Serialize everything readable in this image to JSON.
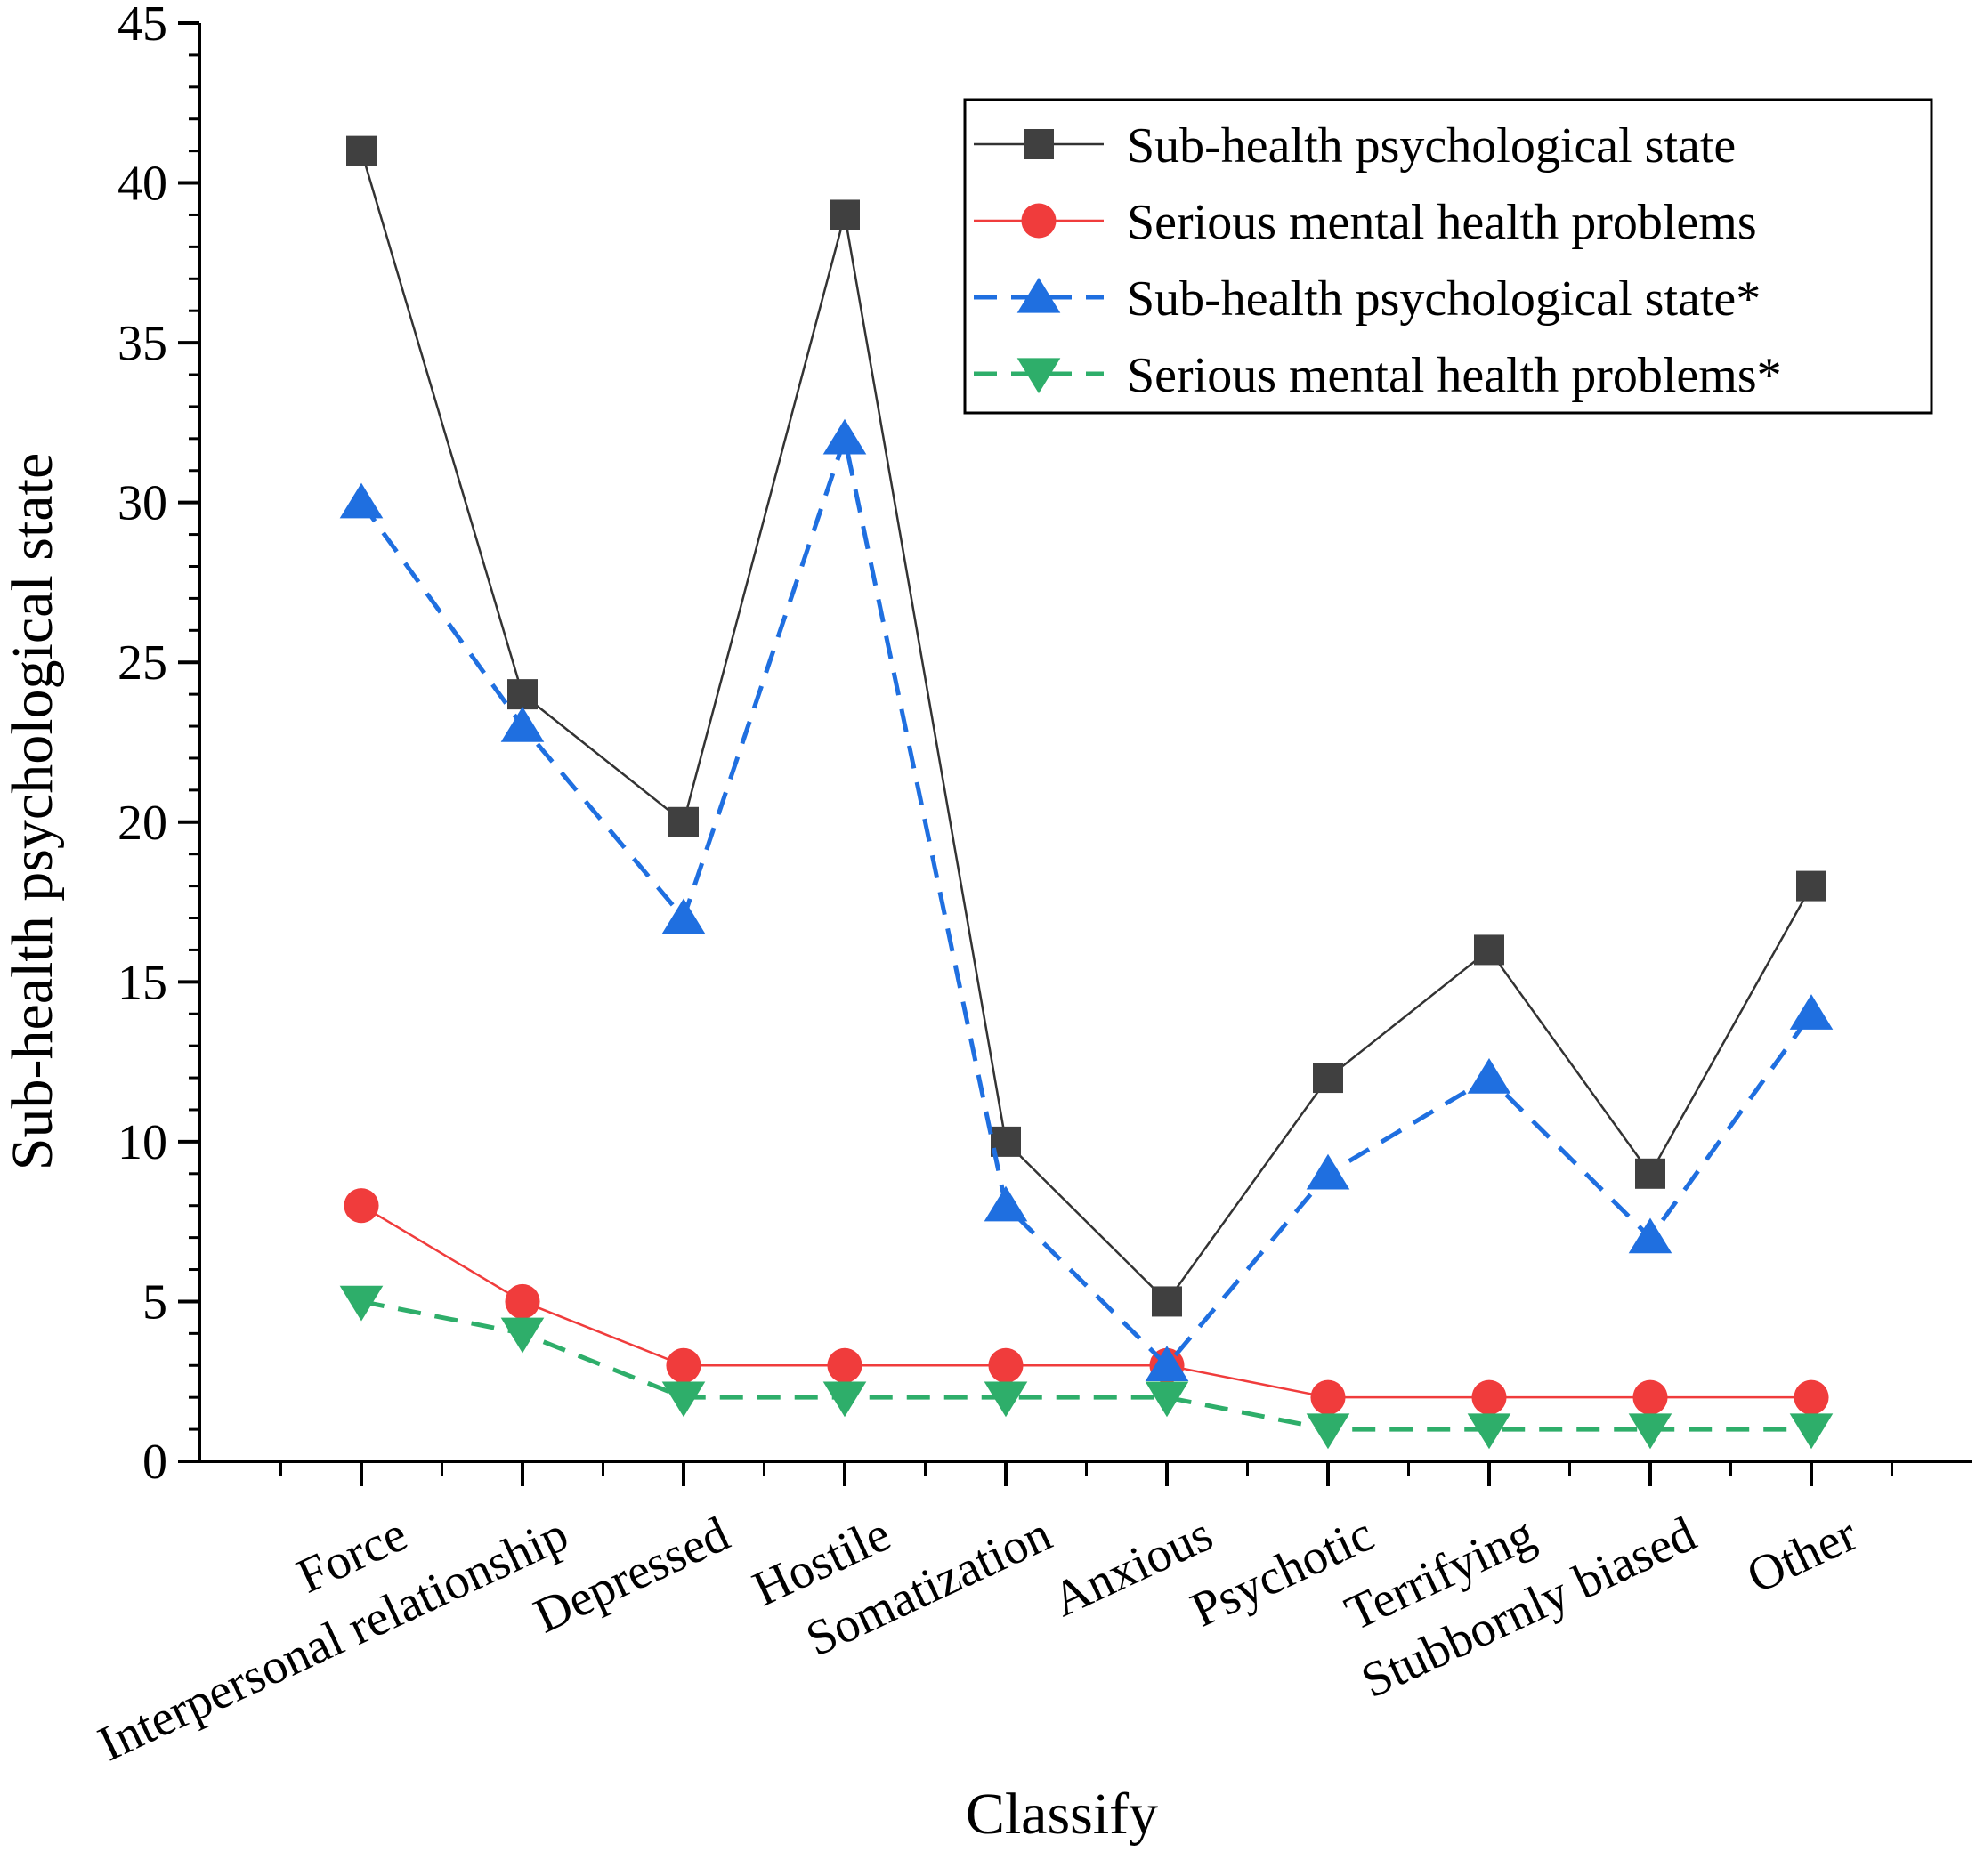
{
  "chart_data": {
    "type": "line",
    "title": "",
    "xlabel": "Classify",
    "ylabel": "Sub-health psychological state",
    "ylim": [
      0,
      45
    ],
    "yticks": [
      0,
      5,
      10,
      15,
      20,
      25,
      30,
      35,
      40,
      45
    ],
    "grid": false,
    "legend_position": "top-right",
    "categories": [
      "Force",
      "Interpersonal relationship",
      "Depressed",
      "Hostile",
      "Somatization",
      "Anxious",
      "Psychotic",
      "Terrifying",
      "Stubbornly biased",
      "Other"
    ],
    "series": [
      {
        "name": "Sub-health psychological state",
        "marker": "square",
        "line_style": "solid",
        "color": "#404040",
        "line_color": "#333333",
        "values": [
          41,
          24,
          20,
          39,
          10,
          5,
          12,
          16,
          9,
          18
        ]
      },
      {
        "name": "Serious mental health problems",
        "marker": "circle",
        "line_style": "solid",
        "color": "#f03c3c",
        "line_color": "#f03c3c",
        "values": [
          8,
          5,
          3,
          3,
          3,
          3,
          2,
          2,
          2,
          2
        ]
      },
      {
        "name": "Sub-health psychological state*",
        "marker": "triangle-up",
        "line_style": "dashed",
        "color": "#1f6fe0",
        "line_color": "#1f6fe0",
        "values": [
          30,
          23,
          17,
          32,
          8,
          3,
          9,
          12,
          7,
          14
        ]
      },
      {
        "name": "Serious mental health problems*",
        "marker": "triangle-down",
        "line_style": "dashed",
        "color": "#2eae6a",
        "line_color": "#2eae6a",
        "values": [
          5,
          4,
          2,
          2,
          2,
          2,
          1,
          1,
          1,
          1
        ]
      }
    ]
  }
}
